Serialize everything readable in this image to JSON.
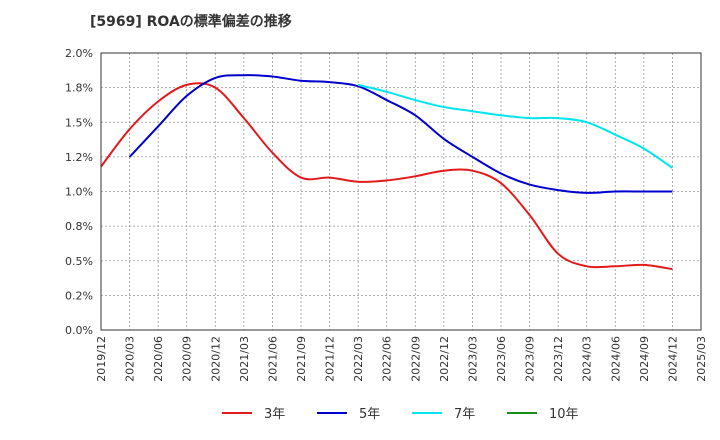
{
  "chart_data": {
    "type": "line",
    "title": "[5969]  ROAの標準偏差の推移",
    "xlabel": "",
    "ylabel": "",
    "ylim": [
      0,
      2.0
    ],
    "yticks": [
      "0.0%",
      "0.2%",
      "0.5%",
      "0.8%",
      "1.0%",
      "1.2%",
      "1.5%",
      "1.8%",
      "2.0%"
    ],
    "xtick_labels": [
      "2019/12",
      "2020/03",
      "2020/06",
      "2020/09",
      "2020/12",
      "2021/03",
      "2021/06",
      "2021/09",
      "2021/12",
      "2022/03",
      "2022/06",
      "2022/09",
      "2022/12",
      "2023/03",
      "2023/06",
      "2023/09",
      "2023/12",
      "2024/03",
      "2024/06",
      "2024/09",
      "2024/12",
      "2025/03"
    ],
    "grid": true,
    "legend_position": "bottom",
    "series": [
      {
        "name": "3年",
        "color": "#e31a1c",
        "points": [
          [
            "2019/12",
            1.18
          ],
          [
            "2020/03",
            1.45
          ],
          [
            "2020/06",
            1.65
          ],
          [
            "2020/09",
            1.77
          ],
          [
            "2020/12",
            1.75
          ],
          [
            "2021/03",
            1.53
          ],
          [
            "2021/06",
            1.28
          ],
          [
            "2021/09",
            1.1
          ],
          [
            "2021/12",
            1.1
          ],
          [
            "2022/03",
            1.07
          ],
          [
            "2022/06",
            1.08
          ],
          [
            "2022/09",
            1.11
          ],
          [
            "2022/12",
            1.15
          ],
          [
            "2023/03",
            1.15
          ],
          [
            "2023/06",
            1.06
          ],
          [
            "2023/09",
            0.83
          ],
          [
            "2023/12",
            0.55
          ],
          [
            "2024/03",
            0.46
          ],
          [
            "2024/06",
            0.46
          ],
          [
            "2024/09",
            0.47
          ],
          [
            "2024/12",
            0.44
          ]
        ]
      },
      {
        "name": "5年",
        "color": "#0000cc",
        "points": [
          [
            "2020/03",
            1.25
          ],
          [
            "2020/06",
            1.47
          ],
          [
            "2020/09",
            1.69
          ],
          [
            "2020/12",
            1.82
          ],
          [
            "2021/03",
            1.84
          ],
          [
            "2021/06",
            1.83
          ],
          [
            "2021/09",
            1.8
          ],
          [
            "2021/12",
            1.79
          ],
          [
            "2022/03",
            1.76
          ],
          [
            "2022/06",
            1.66
          ],
          [
            "2022/09",
            1.55
          ],
          [
            "2022/12",
            1.38
          ],
          [
            "2023/03",
            1.25
          ],
          [
            "2023/06",
            1.13
          ],
          [
            "2023/09",
            1.05
          ],
          [
            "2023/12",
            1.01
          ],
          [
            "2024/03",
            0.99
          ],
          [
            "2024/06",
            1.0
          ],
          [
            "2024/09",
            1.0
          ],
          [
            "2024/12",
            1.0
          ]
        ]
      },
      {
        "name": "7年",
        "color": "#00e5ee",
        "points": [
          [
            "2022/03",
            1.77
          ],
          [
            "2022/06",
            1.72
          ],
          [
            "2022/09",
            1.66
          ],
          [
            "2022/12",
            1.61
          ],
          [
            "2023/03",
            1.58
          ],
          [
            "2023/06",
            1.55
          ],
          [
            "2023/09",
            1.53
          ],
          [
            "2023/12",
            1.53
          ],
          [
            "2024/03",
            1.5
          ],
          [
            "2024/06",
            1.41
          ],
          [
            "2024/09",
            1.31
          ],
          [
            "2024/12",
            1.17
          ]
        ]
      },
      {
        "name": "10年",
        "color": "#1a8c1a",
        "points": []
      }
    ]
  }
}
